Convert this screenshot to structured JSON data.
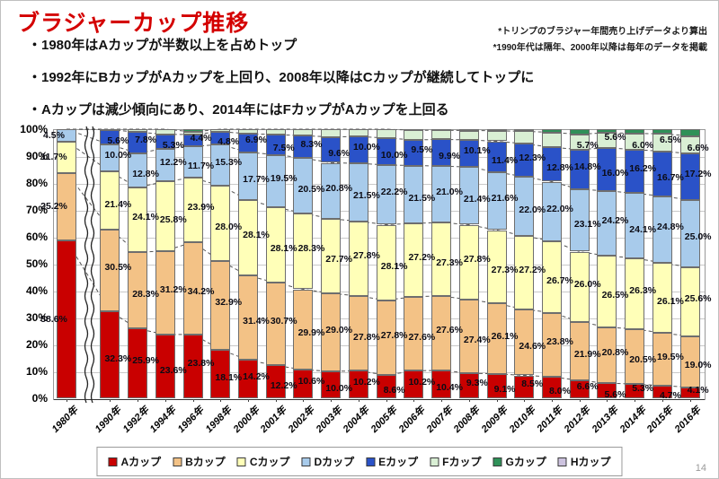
{
  "slide": {
    "title": "ブラジャーカップ推移",
    "notes": [
      "*トリンプのブラジャー年間売り上げデータより算出",
      "*1990年代は隔年、2000年以降は毎年のデータを掲載"
    ],
    "bullets": [
      "・1980年はAカップが半数以上を占めトップ",
      "・1992年にBカップがAカップを上回り、2008年以降はCカップが継続してトップに",
      "・Aカップは減少傾向にあり、2014年にはFカップがAカップを上回る"
    ],
    "page_number": "14"
  },
  "chart_data": {
    "type": "bar",
    "stacked": true,
    "unit": "%",
    "grid": true,
    "axis_break_after_first_category": true,
    "legend_position": "bottom",
    "categories": [
      "1980年",
      "1990年",
      "1992年",
      "1994年",
      "1996年",
      "1998年",
      "2000年",
      "2001年",
      "2002年",
      "2003年",
      "2004年",
      "2005年",
      "2006年",
      "2007年",
      "2008年",
      "2009年",
      "2010年",
      "2011年",
      "2012年",
      "2013年",
      "2014年",
      "2015年",
      "2016年"
    ],
    "y_axis": {
      "min": 0,
      "max": 100,
      "tick_step": 10,
      "tick_suffix": "%"
    },
    "series": [
      {
        "name": "Aカップ",
        "color": "#c90000",
        "label_from_index": 0,
        "values": [
          58.6,
          32.3,
          25.9,
          23.6,
          23.8,
          18.1,
          14.2,
          12.2,
          10.6,
          10.0,
          10.2,
          8.6,
          10.2,
          10.4,
          9.3,
          9.1,
          8.5,
          8.0,
          6.6,
          5.6,
          5.3,
          4.7,
          4.1
        ]
      },
      {
        "name": "Bカップ",
        "color": "#f3c286",
        "label_from_index": 0,
        "values": [
          25.2,
          30.5,
          28.3,
          31.2,
          34.2,
          32.9,
          31.4,
          30.7,
          29.9,
          29.0,
          27.8,
          27.8,
          27.6,
          27.6,
          27.4,
          26.1,
          24.6,
          23.8,
          21.9,
          20.8,
          20.5,
          19.5,
          19.0
        ]
      },
      {
        "name": "Cカップ",
        "color": "#ffffb8",
        "label_from_index": 0,
        "values": [
          11.7,
          21.4,
          24.1,
          25.8,
          23.9,
          28.0,
          28.1,
          28.1,
          28.3,
          27.7,
          27.8,
          28.1,
          27.2,
          27.3,
          27.8,
          27.3,
          27.2,
          26.7,
          26.0,
          26.5,
          26.3,
          26.1,
          25.6
        ]
      },
      {
        "name": "Dカップ",
        "color": "#a8cbeb",
        "label_from_index": 0,
        "values": [
          4.5,
          10.0,
          12.8,
          12.2,
          11.7,
          15.3,
          17.7,
          19.5,
          20.5,
          20.8,
          21.5,
          22.2,
          21.5,
          21.0,
          21.4,
          21.6,
          22.0,
          22.0,
          23.1,
          24.2,
          24.1,
          24.8,
          25.0
        ]
      },
      {
        "name": "Eカップ",
        "color": "#2a52c8",
        "label_from_index": 0,
        "values": [
          0,
          5.6,
          7.8,
          5.3,
          4.4,
          4.8,
          6.9,
          7.5,
          8.3,
          9.6,
          10.0,
          10.0,
          9.5,
          9.9,
          10.1,
          11.4,
          12.3,
          12.8,
          14.8,
          16.0,
          16.2,
          16.7,
          17.2
        ]
      },
      {
        "name": "Fカップ",
        "color": "#d9efd4",
        "label_from_index": 18,
        "values": [
          0,
          0.2,
          1.1,
          1.9,
          1.0,
          0.9,
          1.7,
          2.0,
          2.4,
          2.9,
          2.7,
          3.3,
          3.6,
          3.4,
          3.5,
          3.9,
          4.6,
          5.5,
          5.7,
          5.6,
          6.0,
          6.5,
          6.6
        ]
      },
      {
        "name": "Gカップ",
        "color": "#2f9158",
        "label_from_index": 99,
        "values": [
          0,
          0,
          0,
          0,
          1.0,
          0,
          0,
          0,
          0,
          0,
          0,
          0,
          0.4,
          0.4,
          0.5,
          0.6,
          0.8,
          1.2,
          1.9,
          1.3,
          1.6,
          1.7,
          2.5
        ]
      },
      {
        "name": "Hカップ",
        "color": "#cdc3df",
        "label_from_index": 99,
        "values": [
          0,
          0,
          0,
          0,
          0,
          0,
          0,
          0,
          0,
          0,
          0,
          0,
          0,
          0,
          0,
          0,
          0,
          0,
          0,
          0,
          0,
          0,
          0
        ]
      }
    ],
    "colors": {
      "grid": "#c9c9c9",
      "series_line": "#555555",
      "label_text": "#0b0b14"
    }
  }
}
